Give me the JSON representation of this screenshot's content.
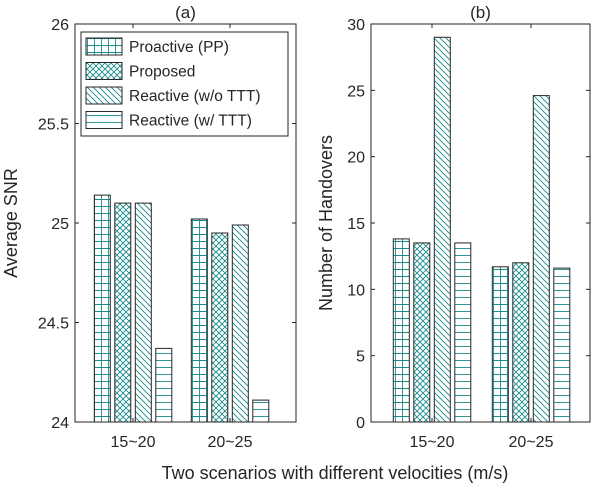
{
  "figure": {
    "xlabel": "Two scenarios with different velocities (m/s)"
  },
  "chart_data": [
    {
      "type": "bar",
      "title": "(a)",
      "xlabel": "",
      "ylabel": "Average SNR",
      "ylim": [
        24,
        26
      ],
      "yticks": [
        24,
        24.5,
        25,
        25.5,
        26
      ],
      "yticklabels": [
        "24",
        "24.5",
        "25",
        "25.5",
        "26"
      ],
      "categories": [
        "15~20",
        "20~25"
      ],
      "series": [
        {
          "name": "Proactive (PP)",
          "values": [
            25.14,
            25.02
          ],
          "pattern": "grid"
        },
        {
          "name": "Proposed",
          "values": [
            25.1,
            24.95
          ],
          "pattern": "cross"
        },
        {
          "name": "Reactive (w/o TTT)",
          "values": [
            25.1,
            24.99
          ],
          "pattern": "diag"
        },
        {
          "name": "Reactive (w/ TTT)",
          "values": [
            24.37,
            24.11
          ],
          "pattern": "horiz"
        }
      ],
      "legend": "top-left",
      "grid": false
    },
    {
      "type": "bar",
      "title": "(b)",
      "xlabel": "",
      "ylabel": "Number of Handovers",
      "ylim": [
        0,
        30
      ],
      "yticks": [
        0,
        5,
        10,
        15,
        20,
        25,
        30
      ],
      "yticklabels": [
        "0",
        "5",
        "10",
        "15",
        "20",
        "25",
        "30"
      ],
      "categories": [
        "15~20",
        "20~25"
      ],
      "series": [
        {
          "values": [
            13.8,
            11.7
          ],
          "pattern": "grid"
        },
        {
          "values": [
            13.5,
            12.0
          ],
          "pattern": "cross"
        },
        {
          "values": [
            29.0,
            24.6
          ],
          "pattern": "diag"
        },
        {
          "values": [
            13.5,
            11.6
          ],
          "pattern": "horiz"
        }
      ],
      "grid": false
    }
  ],
  "colors": {
    "bar_fill": "#ffffff",
    "bar_edge": "#262626",
    "hatch": "#1a8a8a",
    "axis": "#262626"
  }
}
